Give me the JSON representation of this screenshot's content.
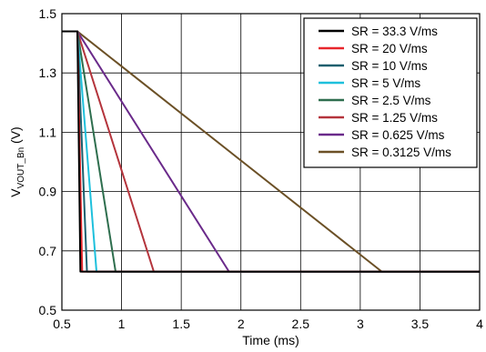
{
  "chart_data": {
    "type": "line",
    "title": "",
    "xlabel": "Time (ms)",
    "ylabel": {
      "main": "V",
      "sub": "VOUT_Bn",
      "unit": " (V)"
    },
    "xlim": [
      0.5,
      4
    ],
    "ylim": [
      0.5,
      1.5
    ],
    "xticks": [
      "0.5",
      "1",
      "1.5",
      "2",
      "2.5",
      "3",
      "3.5",
      "4"
    ],
    "yticks": [
      "0.5",
      "0.7",
      "0.9",
      "1.1",
      "1.3",
      "1.5"
    ],
    "grid": true,
    "legend_position": "top-right",
    "series": [
      {
        "name": "SR = 33.3 V/ms",
        "color": "#000000",
        "points": [
          [
            0.5,
            1.44
          ],
          [
            0.63,
            1.44
          ],
          [
            0.655,
            0.63
          ],
          [
            4,
            0.63
          ]
        ]
      },
      {
        "name": "SR = 20 V/ms",
        "color": "#e8262b",
        "points": [
          [
            0.5,
            1.44
          ],
          [
            0.63,
            1.44
          ],
          [
            0.67,
            0.63
          ],
          [
            4,
            0.63
          ]
        ]
      },
      {
        "name": "SR = 10 V/ms",
        "color": "#1a5f6e",
        "points": [
          [
            0.5,
            1.44
          ],
          [
            0.63,
            1.44
          ],
          [
            0.71,
            0.63
          ],
          [
            4,
            0.63
          ]
        ]
      },
      {
        "name": "SR = 5 V/ms",
        "color": "#1ec0dc",
        "points": [
          [
            0.5,
            1.44
          ],
          [
            0.63,
            1.44
          ],
          [
            0.79,
            0.63
          ],
          [
            4,
            0.63
          ]
        ]
      },
      {
        "name": "SR = 2.5 V/ms",
        "color": "#2e6e4e",
        "points": [
          [
            0.5,
            1.44
          ],
          [
            0.63,
            1.44
          ],
          [
            0.95,
            0.63
          ],
          [
            4,
            0.63
          ]
        ]
      },
      {
        "name": "SR = 1.25 V/ms",
        "color": "#b4343c",
        "points": [
          [
            0.5,
            1.44
          ],
          [
            0.63,
            1.44
          ],
          [
            1.27,
            0.63
          ],
          [
            4,
            0.63
          ]
        ]
      },
      {
        "name": "SR = 0.625 V/ms",
        "color": "#6a2a8a",
        "points": [
          [
            0.5,
            1.44
          ],
          [
            0.63,
            1.44
          ],
          [
            1.9,
            0.63
          ],
          [
            4,
            0.63
          ]
        ]
      },
      {
        "name": "SR = 0.3125 V/ms",
        "color": "#6b5026",
        "points": [
          [
            0.5,
            1.44
          ],
          [
            0.63,
            1.44
          ],
          [
            3.18,
            0.63
          ],
          [
            4,
            0.63
          ]
        ]
      }
    ]
  }
}
